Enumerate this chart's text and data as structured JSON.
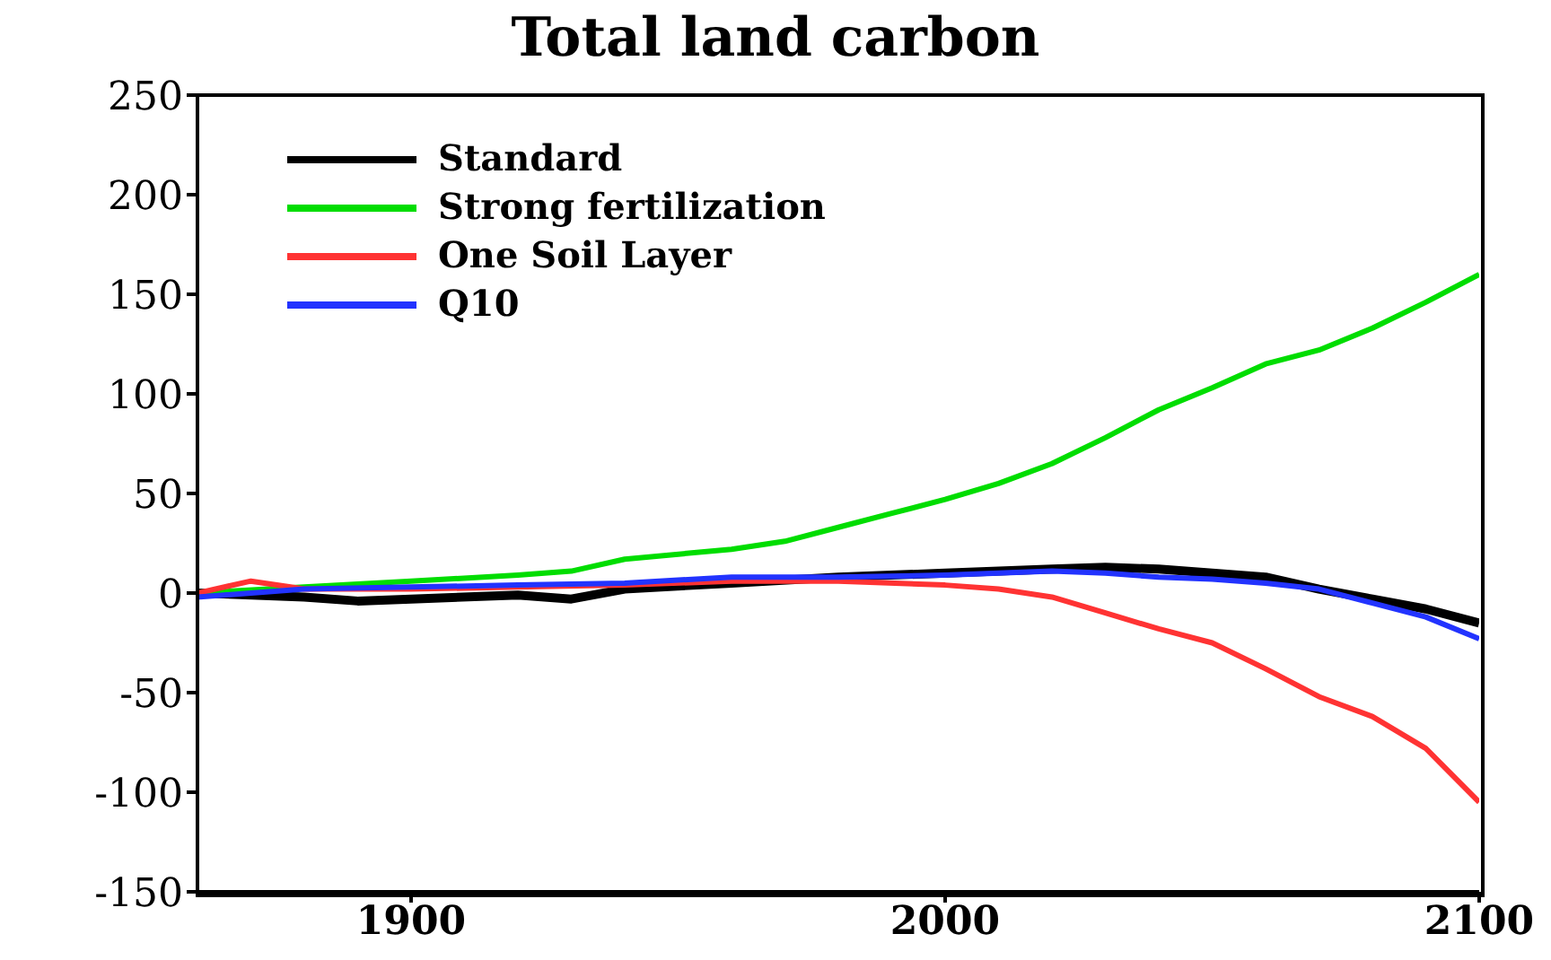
{
  "chart_data": {
    "type": "line",
    "title": "Total land carbon",
    "xlim": [
      1860,
      2100
    ],
    "xticks": [
      1900,
      2000,
      2100
    ],
    "ylim": [
      -150,
      250
    ],
    "yticks": [
      -150,
      -100,
      -50,
      0,
      50,
      100,
      150,
      200,
      250
    ],
    "legend": "top left",
    "marker": "none",
    "line_style": "solid",
    "series": [
      {
        "name": "Standard",
        "color": "#000000",
        "x": [
          1860,
          1880,
          1890,
          1900,
          1920,
          1930,
          1940,
          1960,
          1980,
          2000,
          2020,
          2030,
          2040,
          2050,
          2060,
          2070,
          2080,
          2090,
          2100
        ],
        "values": [
          0,
          -2,
          -4,
          -3,
          -1,
          -3,
          2,
          5,
          8,
          10,
          12,
          13,
          12,
          10,
          8,
          2,
          -3,
          -8,
          -15
        ]
      },
      {
        "name": "Strong fertilization",
        "color": "#00dd00",
        "x": [
          1860,
          1880,
          1900,
          1920,
          1930,
          1940,
          1960,
          1970,
          1980,
          1990,
          2000,
          2010,
          2020,
          2030,
          2040,
          2050,
          2060,
          2070,
          2080,
          2090,
          2100
        ],
        "values": [
          0,
          3,
          6,
          9,
          11,
          17,
          22,
          26,
          33,
          40,
          47,
          55,
          65,
          78,
          92,
          103,
          115,
          122,
          133,
          146,
          160
        ]
      },
      {
        "name": "One Soil Layer",
        "color": "#ff3333",
        "x": [
          1860,
          1870,
          1880,
          1900,
          1920,
          1940,
          1960,
          1980,
          2000,
          2010,
          2020,
          2030,
          2040,
          2050,
          2060,
          2070,
          2080,
          2090,
          2100
        ],
        "values": [
          0,
          6,
          2,
          2,
          3,
          4,
          6,
          6,
          4,
          2,
          -2,
          -10,
          -18,
          -25,
          -38,
          -52,
          -62,
          -78,
          -105
        ]
      },
      {
        "name": "Q10",
        "color": "#2233ff",
        "x": [
          1860,
          1880,
          1900,
          1920,
          1940,
          1960,
          1980,
          2000,
          2020,
          2030,
          2040,
          2050,
          2060,
          2070,
          2080,
          2090,
          2100
        ],
        "values": [
          -2,
          2,
          3,
          4,
          5,
          8,
          8,
          9,
          11,
          10,
          8,
          7,
          5,
          2,
          -5,
          -12,
          -23
        ]
      }
    ]
  }
}
